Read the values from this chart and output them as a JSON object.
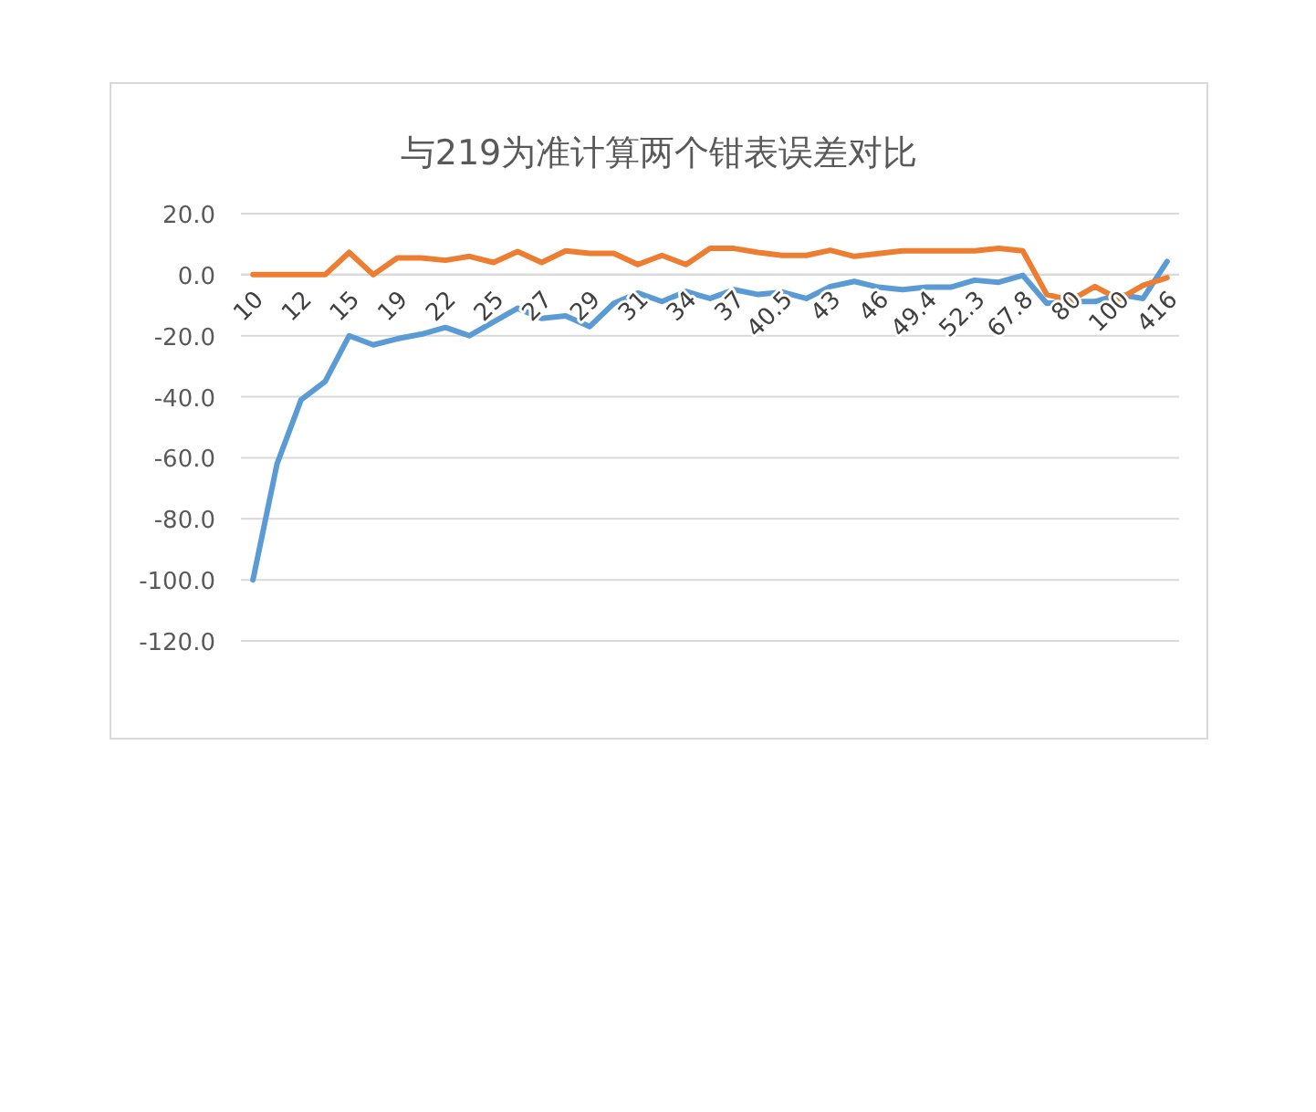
{
  "chart_data": {
    "type": "line",
    "title": "与219为准计算两个钳表误差对比",
    "categories": [
      "10",
      null,
      "12",
      null,
      "15",
      null,
      "19",
      null,
      "22",
      null,
      "25",
      null,
      "27",
      null,
      "29",
      null,
      "31",
      null,
      "34",
      null,
      "37",
      null,
      "40.5",
      null,
      "43",
      null,
      "46",
      null,
      "49.4",
      null,
      "52.3",
      null,
      "67.8",
      null,
      "80",
      null,
      "100",
      null,
      "416"
    ],
    "series": [
      {
        "color": "#5b9bd5",
        "values": [
          -100,
          -62,
          -41,
          -35,
          -20,
          -23,
          -21,
          -19.5,
          -17.3,
          -20,
          -15.5,
          -11,
          -14.3,
          -13.5,
          -17,
          -9.4,
          -6,
          -8.8,
          -5.5,
          -7.8,
          -4.9,
          -6.5,
          -5.7,
          -7.8,
          -3.9,
          -2.2,
          -4.1,
          -4.9,
          -4.1,
          -4.1,
          -1.8,
          -2.5,
          -0.2,
          -9.4,
          -8.8,
          -8.8,
          -6.5,
          -7.8,
          4.3
        ]
      },
      {
        "color": "#ed7d31",
        "values": [
          0,
          0,
          0,
          0,
          7.3,
          0,
          5.5,
          5.5,
          4.7,
          6,
          4,
          7.6,
          4,
          7.8,
          7,
          7,
          3.3,
          6.3,
          3.3,
          8.6,
          8.6,
          7.3,
          6.3,
          6.3,
          8,
          6,
          6.9,
          7.8,
          7.8,
          7.8,
          7.8,
          8.6,
          7.8,
          -6.5,
          -8.4,
          -3.9,
          -8,
          -3.5,
          -1
        ]
      }
    ],
    "ylim": [
      -120,
      20
    ],
    "yticks": [
      {
        "value": 20,
        "label": "20.0"
      },
      {
        "value": 0,
        "label": "0.0"
      },
      {
        "value": -20,
        "label": "-20.0"
      },
      {
        "value": -40,
        "label": "-40.0"
      },
      {
        "value": -60,
        "label": "-60.0"
      },
      {
        "value": -80,
        "label": "-80.0"
      },
      {
        "value": -100,
        "label": "-100.0"
      },
      {
        "value": -120,
        "label": "-120.0"
      }
    ],
    "grid": "y",
    "line_style": "solid"
  }
}
